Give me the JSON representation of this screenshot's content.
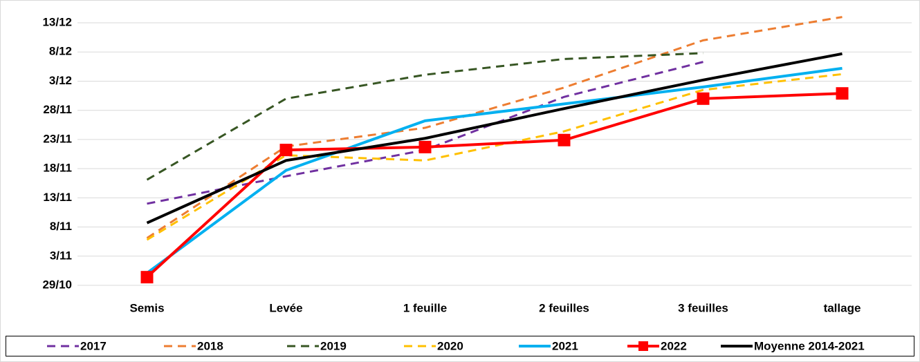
{
  "chart_data": {
    "type": "line",
    "categories": [
      "Semis",
      "Levée",
      "1 feuille",
      "2 feuilles",
      "3 feuilles",
      "tallage"
    ],
    "ylim": [
      302,
      348
    ],
    "yticks": [
      {
        "value": 302,
        "label": "29/10"
      },
      {
        "value": 307,
        "label": "3/11"
      },
      {
        "value": 312,
        "label": "8/11"
      },
      {
        "value": 317,
        "label": "13/11"
      },
      {
        "value": 322,
        "label": "18/11"
      },
      {
        "value": 327,
        "label": "23/11"
      },
      {
        "value": 332,
        "label": "28/11"
      },
      {
        "value": 337,
        "label": "3/12"
      },
      {
        "value": 342,
        "label": "8/12"
      },
      {
        "value": 347,
        "label": "13/12"
      }
    ],
    "grid": true,
    "legend": "bottom",
    "series": [
      {
        "name": "2017",
        "color": "#7030a0",
        "style": "dashed",
        "values": [
          316.0,
          320.7,
          325.2,
          334.3,
          340.3,
          null
        ]
      },
      {
        "name": "2018",
        "color": "#ed7d31",
        "style": "dashed",
        "values": [
          310.1,
          325.8,
          329.0,
          335.9,
          344.0,
          348.0
        ]
      },
      {
        "name": "2019",
        "color": "#375623",
        "style": "dashed",
        "values": [
          320.1,
          334.0,
          338.1,
          340.8,
          341.8,
          null
        ]
      },
      {
        "name": "2020",
        "color": "#ffc000",
        "style": "dashed",
        "values": [
          309.8,
          324.3,
          323.4,
          328.4,
          335.5,
          338.2
        ]
      },
      {
        "name": "2021",
        "color": "#00b0f0",
        "style": "solid",
        "values": [
          304.1,
          321.7,
          330.2,
          333.1,
          336.0,
          339.2
        ]
      },
      {
        "name": "2022",
        "color": "#ff0000",
        "style": "solid",
        "marker": "square",
        "values": [
          303.4,
          325.2,
          325.7,
          326.9,
          334.0,
          334.9
        ]
      },
      {
        "name": "Moyenne 2014-2021",
        "color": "#000000",
        "style": "solid",
        "values": [
          312.7,
          323.4,
          327.2,
          332.3,
          337.2,
          341.7
        ]
      }
    ]
  }
}
